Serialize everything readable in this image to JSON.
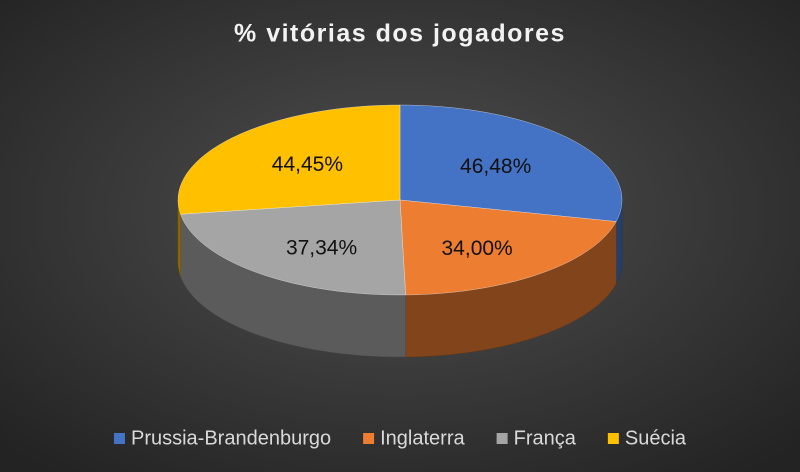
{
  "chart_data": {
    "type": "pie",
    "title": "% vitórias dos jogadores",
    "categories": [
      "Prussia-Brandenburgo",
      "Inglaterra",
      "França",
      "Suécia"
    ],
    "values": [
      46.48,
      34.0,
      37.34,
      44.45
    ],
    "value_labels": [
      "46,48%",
      "34,00%",
      "37,34%",
      "44,45%"
    ],
    "colors": [
      "#4472c4",
      "#ed7d31",
      "#a5a5a5",
      "#ffc000"
    ],
    "legend": "bottom"
  }
}
